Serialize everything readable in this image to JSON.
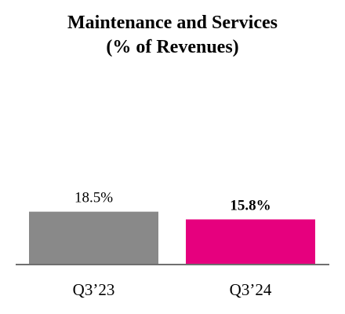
{
  "chart_data": {
    "type": "bar",
    "title": "Maintenance and Services",
    "subtitle": "(% of Revenues)",
    "categories": [
      "Q3’23",
      "Q3’24"
    ],
    "values": [
      18.5,
      15.8
    ],
    "value_labels": [
      "18.5%",
      "15.8%"
    ],
    "value_label_bold": [
      false,
      true
    ],
    "colors": [
      "#898989",
      "#e6007e"
    ],
    "axis_color": "#6f6f6f",
    "xlabel": "",
    "ylabel": "",
    "ylim": [
      0,
      20
    ],
    "grid": false,
    "legend": "none"
  }
}
